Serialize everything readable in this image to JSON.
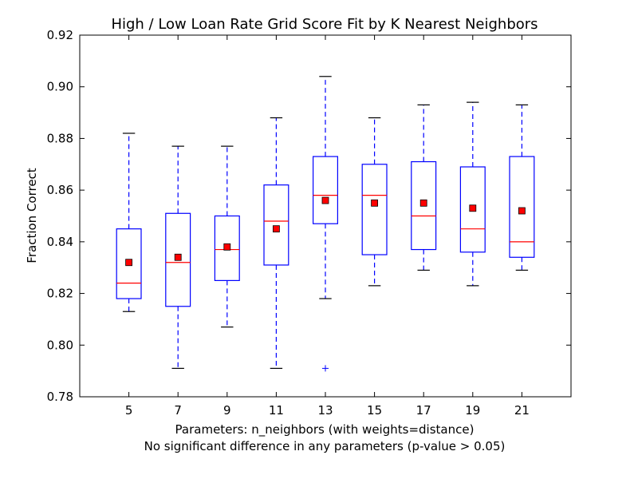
{
  "chart_data": {
    "type": "box",
    "title": "High / Low Loan Rate Grid Score Fit by K Nearest Neighbors",
    "xlabel": "Parameters: n_neighbors (with weights=distance)",
    "xlabel2": "No significant difference in any parameters (p-value > 0.05)",
    "ylabel": "Fraction Correct",
    "ylim": [
      0.78,
      0.92
    ],
    "yticks": [
      "0.78",
      "0.80",
      "0.82",
      "0.84",
      "0.86",
      "0.88",
      "0.90",
      "0.92"
    ],
    "categories": [
      "5",
      "7",
      "9",
      "11",
      "13",
      "15",
      "17",
      "19",
      "21"
    ],
    "boxes": [
      {
        "whisker_low": 0.813,
        "q1": 0.818,
        "median": 0.824,
        "q3": 0.845,
        "whisker_high": 0.882,
        "mean": 0.832,
        "outliers": []
      },
      {
        "whisker_low": 0.791,
        "q1": 0.815,
        "median": 0.832,
        "q3": 0.851,
        "whisker_high": 0.877,
        "mean": 0.834,
        "outliers": []
      },
      {
        "whisker_low": 0.807,
        "q1": 0.825,
        "median": 0.837,
        "q3": 0.85,
        "whisker_high": 0.877,
        "mean": 0.838,
        "outliers": []
      },
      {
        "whisker_low": 0.791,
        "q1": 0.831,
        "median": 0.848,
        "q3": 0.862,
        "whisker_high": 0.888,
        "mean": 0.845,
        "outliers": []
      },
      {
        "whisker_low": 0.818,
        "q1": 0.847,
        "median": 0.858,
        "q3": 0.873,
        "whisker_high": 0.904,
        "mean": 0.856,
        "outliers": [
          0.791
        ]
      },
      {
        "whisker_low": 0.823,
        "q1": 0.835,
        "median": 0.858,
        "q3": 0.87,
        "whisker_high": 0.888,
        "mean": 0.855,
        "outliers": []
      },
      {
        "whisker_low": 0.829,
        "q1": 0.837,
        "median": 0.85,
        "q3": 0.871,
        "whisker_high": 0.893,
        "mean": 0.855,
        "outliers": []
      },
      {
        "whisker_low": 0.823,
        "q1": 0.836,
        "median": 0.845,
        "q3": 0.869,
        "whisker_high": 0.894,
        "mean": 0.853,
        "outliers": []
      },
      {
        "whisker_low": 0.829,
        "q1": 0.834,
        "median": 0.84,
        "q3": 0.873,
        "whisker_high": 0.893,
        "mean": 0.852,
        "outliers": []
      }
    ],
    "colors": {
      "box": "#0000ff",
      "median": "#ff0000",
      "mean": "#ff0000",
      "mean_edge": "#000000",
      "cap": "#000000",
      "outlier": "#0000ff"
    },
    "grid": false,
    "legend": "none"
  }
}
